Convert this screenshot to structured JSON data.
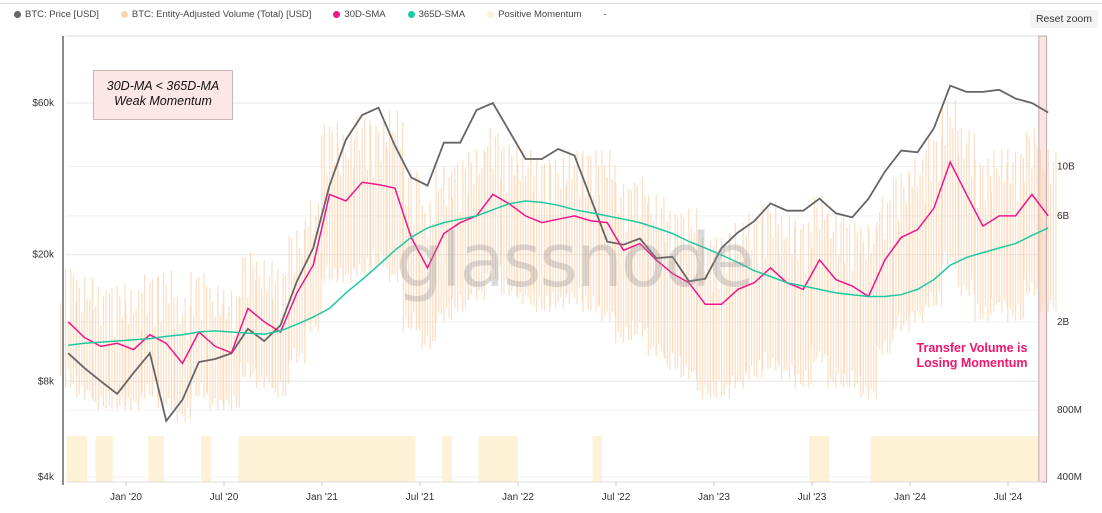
{
  "legend": [
    {
      "label": "BTC: Price [USD]",
      "color": "#666666"
    },
    {
      "label": "BTC: Entity-Adjusted Volume (Total) [USD]",
      "color": "#fcd3b0"
    },
    {
      "label": "30D-SMA",
      "color": "#f0168a"
    },
    {
      "label": "365D-SMA",
      "color": "#1dc9a0"
    },
    {
      "label": "Positive Momentum",
      "color": "#fdf1d6"
    },
    {
      "label": "-",
      "color": ""
    }
  ],
  "reset_zoom": "Reset zoom",
  "watermark": "glassnode",
  "annotations": {
    "box_line1": "30D-MA < 365D-MA",
    "box_line2": "Weak Momentum",
    "red_line1": "Transfer Volume is",
    "red_line2": "Losing Momentum"
  },
  "chart_data": {
    "type": "line",
    "x_ticks": [
      "Jan '20",
      "Jul '20",
      "Jan '21",
      "Jul '21",
      "Jan '22",
      "Jul '22",
      "Jan '23",
      "Jul '23",
      "Jan '24",
      "Jul '24"
    ],
    "y_left": {
      "scale": "log",
      "ticks": [
        {
          "v": 4000,
          "label": "$4k"
        },
        {
          "v": 8000,
          "label": "$8k"
        },
        {
          "v": 20000,
          "label": "$20k"
        },
        {
          "v": 60000,
          "label": "$60k"
        }
      ]
    },
    "y_right": {
      "scale": "log",
      "unit": "USD billions",
      "ticks": [
        {
          "v": 0.4,
          "label": "400M"
        },
        {
          "v": 0.8,
          "label": "800M"
        },
        {
          "v": 2,
          "label": "2B"
        },
        {
          "v": 6,
          "label": "6B"
        },
        {
          "v": 10,
          "label": "10B"
        }
      ]
    },
    "months": [
      "2019-09",
      "2019-10",
      "2019-11",
      "2019-12",
      "2020-01",
      "2020-02",
      "2020-03",
      "2020-04",
      "2020-05",
      "2020-06",
      "2020-07",
      "2020-08",
      "2020-09",
      "2020-10",
      "2020-11",
      "2020-12",
      "2021-01",
      "2021-02",
      "2021-03",
      "2021-04",
      "2021-05",
      "2021-06",
      "2021-07",
      "2021-08",
      "2021-09",
      "2021-10",
      "2021-11",
      "2021-12",
      "2022-01",
      "2022-02",
      "2022-03",
      "2022-04",
      "2022-05",
      "2022-06",
      "2022-07",
      "2022-08",
      "2022-09",
      "2022-10",
      "2022-11",
      "2022-12",
      "2023-01",
      "2023-02",
      "2023-03",
      "2023-04",
      "2023-05",
      "2023-06",
      "2023-07",
      "2023-08",
      "2023-09",
      "2023-10",
      "2023-11",
      "2023-12",
      "2024-01",
      "2024-02",
      "2024-03",
      "2024-04",
      "2024-05",
      "2024-06",
      "2024-07",
      "2024-08",
      "2024-09"
    ],
    "series": [
      {
        "name": "BTC: Price [USD]",
        "axis": "left",
        "color": "#666666",
        "values": [
          9800,
          8800,
          8000,
          7300,
          8500,
          9800,
          6000,
          7000,
          9200,
          9400,
          9800,
          11700,
          10700,
          12000,
          16500,
          21000,
          33000,
          46000,
          55000,
          58000,
          44000,
          35000,
          33000,
          45000,
          45000,
          57000,
          60000,
          49000,
          40000,
          40000,
          43000,
          41000,
          30000,
          22000,
          21500,
          22500,
          19500,
          19700,
          16500,
          16800,
          21000,
          23500,
          25500,
          29000,
          27500,
          27500,
          30000,
          27000,
          26200,
          30000,
          36500,
          42500,
          42000,
          50000,
          68000,
          65000,
          65000,
          66000,
          62000,
          60000,
          56000
        ]
      },
      {
        "name": "30D-SMA",
        "axis": "right",
        "color": "#f0168a",
        "values": [
          2.0,
          1.7,
          1.55,
          1.6,
          1.5,
          1.75,
          1.6,
          1.3,
          1.8,
          1.55,
          1.45,
          2.3,
          2.0,
          1.8,
          2.7,
          3.6,
          7.5,
          7.0,
          8.5,
          8.3,
          8.0,
          4.8,
          3.5,
          5.0,
          5.6,
          6.0,
          7.5,
          6.8,
          6.0,
          5.6,
          5.8,
          6.0,
          5.7,
          5.6,
          4.2,
          4.5,
          3.8,
          3.3,
          3.0,
          2.4,
          2.4,
          2.8,
          3.0,
          3.5,
          3.0,
          2.8,
          3.8,
          3.1,
          2.9,
          2.6,
          3.8,
          4.8,
          5.2,
          6.5,
          10.5,
          7.5,
          5.4,
          6.0,
          6.0,
          7.5,
          6.0
        ]
      },
      {
        "name": "365D-SMA",
        "axis": "right",
        "color": "#1dc9a0",
        "values": [
          1.57,
          1.6,
          1.62,
          1.64,
          1.66,
          1.68,
          1.72,
          1.75,
          1.8,
          1.82,
          1.8,
          1.78,
          1.76,
          1.82,
          1.95,
          2.1,
          2.3,
          2.7,
          3.1,
          3.6,
          4.2,
          4.8,
          5.3,
          5.6,
          5.8,
          6.0,
          6.4,
          6.8,
          7.0,
          6.9,
          6.7,
          6.4,
          6.2,
          6.0,
          5.8,
          5.6,
          5.3,
          5.0,
          4.6,
          4.3,
          4.0,
          3.7,
          3.4,
          3.2,
          3.0,
          2.9,
          2.8,
          2.7,
          2.65,
          2.6,
          2.6,
          2.65,
          2.8,
          3.1,
          3.6,
          3.9,
          4.1,
          4.3,
          4.5,
          4.9,
          5.3
        ]
      },
      {
        "name": "BTC: Entity-Adjusted Volume (Total) [USD]",
        "axis": "right",
        "color": "#fcd3b0",
        "type": "range",
        "values": [
          [
            1.0,
            3.6
          ],
          [
            0.9,
            3.2
          ],
          [
            0.8,
            2.9
          ],
          [
            0.8,
            3.0
          ],
          [
            0.8,
            2.8
          ],
          [
            0.9,
            3.3
          ],
          [
            0.8,
            3.4
          ],
          [
            0.7,
            2.6
          ],
          [
            0.9,
            3.4
          ],
          [
            0.8,
            2.9
          ],
          [
            0.8,
            2.8
          ],
          [
            1.1,
            4.2
          ],
          [
            1.0,
            3.8
          ],
          [
            0.9,
            3.5
          ],
          [
            1.3,
            5.2
          ],
          [
            1.8,
            7.0
          ],
          [
            3.0,
            16
          ],
          [
            3.0,
            14
          ],
          [
            3.2,
            17
          ],
          [
            3.5,
            16
          ],
          [
            3.0,
            18
          ],
          [
            1.8,
            10
          ],
          [
            1.5,
            7.0
          ],
          [
            2.0,
            10
          ],
          [
            2.2,
            11
          ],
          [
            2.5,
            12
          ],
          [
            3.0,
            15
          ],
          [
            2.6,
            13
          ],
          [
            2.4,
            12
          ],
          [
            2.2,
            11
          ],
          [
            2.3,
            11
          ],
          [
            2.4,
            12
          ],
          [
            2.2,
            12
          ],
          [
            2.0,
            12
          ],
          [
            1.6,
            8.5
          ],
          [
            1.7,
            9.0
          ],
          [
            1.4,
            7.5
          ],
          [
            1.2,
            6.5
          ],
          [
            1.1,
            6.5
          ],
          [
            0.9,
            4.8
          ],
          [
            0.9,
            5.0
          ],
          [
            1.0,
            5.6
          ],
          [
            1.1,
            6.2
          ],
          [
            1.2,
            7.0
          ],
          [
            1.1,
            6.0
          ],
          [
            1.0,
            5.8
          ],
          [
            1.3,
            7.5
          ],
          [
            1.0,
            6.2
          ],
          [
            1.0,
            5.8
          ],
          [
            0.9,
            5.4
          ],
          [
            1.4,
            7.5
          ],
          [
            1.8,
            9.5
          ],
          [
            2.0,
            11
          ],
          [
            2.3,
            14
          ],
          [
            3.5,
            20
          ],
          [
            2.6,
            15
          ],
          [
            2.0,
            11
          ],
          [
            2.2,
            12
          ],
          [
            2.0,
            12
          ],
          [
            2.6,
            15
          ],
          [
            2.2,
            12
          ]
        ]
      }
    ],
    "positive_momentum_periods": [
      [
        "2019-09-12",
        "2019-10-20"
      ],
      [
        "2019-11-05",
        "2019-12-07"
      ],
      [
        "2020-02-12",
        "2020-03-11"
      ],
      [
        "2020-05-19",
        "2020-06-07"
      ],
      [
        "2020-07-28",
        "2021-06-23"
      ],
      [
        "2021-08-12",
        "2021-08-30"
      ],
      [
        "2021-10-19",
        "2022-01-01"
      ],
      [
        "2022-05-18",
        "2022-06-05"
      ],
      [
        "2023-06-26",
        "2023-08-03"
      ],
      [
        "2023-10-19",
        "2024-08-28"
      ]
    ],
    "highlight_period": [
      "2024-08-28",
      "2024-09-12"
    ],
    "x_range": [
      "2019-09-12",
      "2024-09-04"
    ],
    "grid": "horizontal",
    "legend_position": "top-left"
  }
}
